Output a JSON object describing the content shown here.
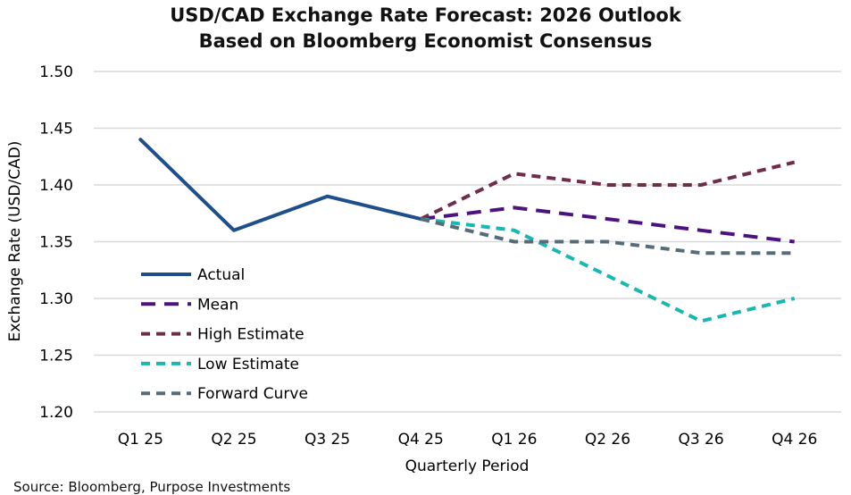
{
  "chart_data": {
    "type": "line",
    "title_lines": [
      "USD/CAD Exchange Rate Forecast: 2026 Outlook",
      "Based on Bloomberg Economist Consensus"
    ],
    "xlabel": "Quarterly Period",
    "ylabel": "Exchange Rate (USD/CAD)",
    "ylim": [
      1.2,
      1.5
    ],
    "yticks": [
      "1.20",
      "1.25",
      "1.30",
      "1.35",
      "1.40",
      "1.45",
      "1.50"
    ],
    "categories": [
      "Q1 25",
      "Q2 25",
      "Q3 25",
      "Q4 25",
      "Q1 26",
      "Q2 26",
      "Q3 26",
      "Q4 26"
    ],
    "grid": "horizontal",
    "legend_position": "left-middle",
    "series": [
      {
        "name": "Actual",
        "color": "#1f4e8c",
        "dash": "solid",
        "values": [
          1.44,
          1.36,
          1.39,
          1.37,
          null,
          null,
          null,
          null
        ]
      },
      {
        "name": "Mean",
        "color": "#4b1280",
        "dash": "long-dash",
        "values": [
          null,
          null,
          null,
          1.37,
          1.38,
          1.37,
          1.36,
          1.35
        ]
      },
      {
        "name": "High Estimate",
        "color": "#6e2d4a",
        "dash": "dash",
        "values": [
          null,
          null,
          null,
          1.37,
          1.41,
          1.4,
          1.4,
          1.42
        ]
      },
      {
        "name": "Low Estimate",
        "color": "#17b8b0",
        "dash": "dash",
        "values": [
          null,
          null,
          null,
          1.37,
          1.36,
          1.32,
          1.28,
          1.3
        ]
      },
      {
        "name": "Forward Curve",
        "color": "#566d79",
        "dash": "dash",
        "values": [
          null,
          null,
          null,
          1.37,
          1.35,
          1.35,
          1.34,
          1.34
        ]
      }
    ],
    "source": "Source: Bloomberg, Purpose Investments"
  }
}
